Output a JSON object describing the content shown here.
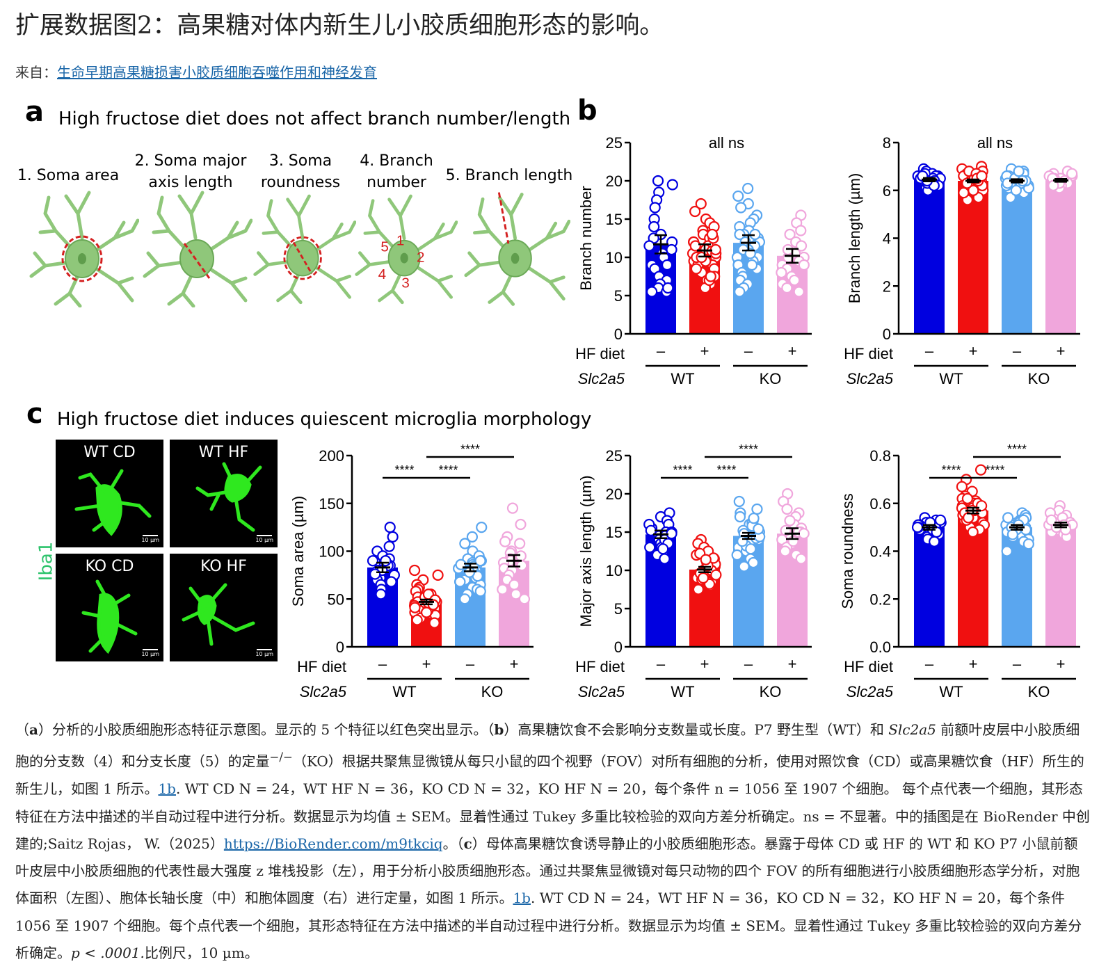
{
  "page_title": "扩展数据图2：高果糖对体内新生儿小胶质细胞形态的影响。",
  "from": {
    "prefix": "来自：",
    "link_text": "生命早期高果糖损害小胶质细胞吞噬作用和神经发育"
  },
  "panel_a": {
    "letter": "a",
    "heading": "High fructose diet does not affect branch number/length",
    "features": [
      {
        "label": "1. Soma area"
      },
      {
        "label": "2. Soma major\naxis length"
      },
      {
        "label": "3. Soma\nroundness"
      },
      {
        "label": "4. Branch\nnumber"
      },
      {
        "label": "5. Branch length"
      }
    ],
    "branch_numbers": [
      "1",
      "2",
      "3",
      "4",
      "5"
    ]
  },
  "panel_b": {
    "letter": "b"
  },
  "panel_c": {
    "letter": "c",
    "heading": "High fructose diet induces quiescent microglia morphology",
    "images": [
      {
        "label": "WT CD"
      },
      {
        "label": "WT HF"
      },
      {
        "label": "KO CD"
      },
      {
        "label": "KO HF"
      }
    ],
    "scale_label": "10 µm",
    "stain_label": "Iba1"
  },
  "chart_data": [
    {
      "type": "bar",
      "panel": "b",
      "annotation": "all ns",
      "ylabel": "Branch number",
      "ylim": [
        0,
        25
      ],
      "yticks": [
        "0",
        "5",
        "10",
        "15",
        "20",
        "25"
      ],
      "row1_label": "HF diet",
      "row1": [
        "–",
        "+",
        "–",
        "+"
      ],
      "row2_label": "Slc2a5",
      "row2": [
        "WT",
        "KO"
      ],
      "colors": [
        "#0000e0",
        "#f01010",
        "#5aa6ef",
        "#f0a6dc"
      ],
      "values": [
        11.7,
        10.9,
        11.9,
        10.2
      ],
      "sem": [
        1.2,
        0.8,
        1.0,
        0.9
      ],
      "points": [
        [
          20,
          19.5,
          18.5,
          17.5,
          16.5,
          15,
          14,
          13,
          12.5,
          12,
          11.5,
          11,
          10.5,
          10,
          9,
          8.5,
          7.5,
          7,
          6.5,
          6,
          5.5,
          5.5,
          6,
          9
        ],
        [
          17,
          16,
          15,
          14.5,
          14,
          13.5,
          13,
          12.5,
          12,
          12,
          11.5,
          11,
          10.8,
          10.5,
          10,
          9.5,
          9,
          9,
          8.5,
          8,
          7.5,
          7,
          6.5,
          6,
          6,
          10.5,
          11.5,
          12.5,
          10,
          8.5,
          7,
          9.5,
          13,
          11,
          10,
          7.5
        ],
        [
          19,
          18,
          17,
          16.5,
          15.5,
          15,
          14.5,
          14,
          13.5,
          13,
          13,
          12.5,
          12,
          12,
          11.5,
          11,
          10.5,
          10,
          10,
          9.5,
          9,
          8.5,
          8,
          7.5,
          7,
          6.5,
          6,
          5.5,
          11,
          13,
          9,
          10.5
        ],
        [
          15.5,
          14.5,
          13.5,
          13,
          12,
          11.5,
          10.5,
          10,
          10,
          9.5,
          9,
          9,
          8.5,
          8,
          7.5,
          7,
          6.5,
          6,
          5.5,
          11
        ]
      ]
    },
    {
      "type": "bar",
      "panel": "b",
      "annotation": "all ns",
      "ylabel": "Branch length (µm)",
      "ylim": [
        0,
        8
      ],
      "yticks": [
        "0",
        "2",
        "4",
        "6",
        "8"
      ],
      "row1_label": "HF diet",
      "row1": [
        "–",
        "+",
        "–",
        "+"
      ],
      "row2_label": "Slc2a5",
      "row2": [
        "WT",
        "KO"
      ],
      "colors": [
        "#0000e0",
        "#f01010",
        "#5aa6ef",
        "#f0a6dc"
      ],
      "values": [
        6.45,
        6.4,
        6.4,
        6.42
      ],
      "sem": [
        0.07,
        0.06,
        0.07,
        0.06
      ],
      "points": [
        [
          6.9,
          6.8,
          6.7,
          6.6,
          6.6,
          6.5,
          6.5,
          6.4,
          6.4,
          6.3,
          6.3,
          6.2,
          6.2,
          6.1,
          6.0,
          6.5,
          6.6,
          6.4,
          6.3,
          6.5,
          6.7,
          6.2,
          6.4,
          6.6
        ],
        [
          7.0,
          6.9,
          6.8,
          6.7,
          6.6,
          6.6,
          6.5,
          6.5,
          6.4,
          6.4,
          6.3,
          6.3,
          6.2,
          6.1,
          6.0,
          5.7,
          5.6,
          6.5,
          6.4,
          6.6,
          6.3,
          6.2,
          6.8,
          6.1,
          6.4,
          6.5,
          6.3,
          6.6,
          6.2,
          6.7,
          6.4,
          6.0,
          6.5,
          5.9,
          6.3,
          6.6
        ],
        [
          6.9,
          6.8,
          6.7,
          6.6,
          6.5,
          6.5,
          6.4,
          6.4,
          6.3,
          6.3,
          6.2,
          6.1,
          6.0,
          5.9,
          5.7,
          6.5,
          6.4,
          6.6,
          6.3,
          6.2,
          6.5,
          6.7,
          6.1,
          6.4,
          6.3,
          6.6,
          6.0,
          6.5,
          6.2,
          6.4,
          6.8,
          6.3
        ],
        [
          6.8,
          6.7,
          6.6,
          6.6,
          6.5,
          6.5,
          6.4,
          6.4,
          6.3,
          6.3,
          6.2,
          6.2,
          6.1,
          6.5,
          6.6,
          6.4,
          6.3,
          6.5,
          6.7,
          6.2
        ]
      ]
    },
    {
      "type": "bar",
      "panel": "c",
      "ylabel": "Soma area (µm)",
      "ylim": [
        0,
        200
      ],
      "yticks": [
        "0",
        "50",
        "100",
        "150",
        "200"
      ],
      "row1_label": "HF diet",
      "row1": [
        "–",
        "+",
        "–",
        "+"
      ],
      "row2_label": "Slc2a5",
      "row2": [
        "WT",
        "KO"
      ],
      "colors": [
        "#0000e0",
        "#f01010",
        "#5aa6ef",
        "#f0a6dc"
      ],
      "values": [
        83,
        47,
        83,
        90
      ],
      "sem": [
        5,
        2.5,
        4,
        6
      ],
      "significance": [
        {
          "from": 0,
          "to": 1,
          "label": "****",
          "level": 0
        },
        {
          "from": 1,
          "to": 2,
          "label": "****",
          "level": 0
        },
        {
          "from": 1,
          "to": 3,
          "label": "****",
          "level": 1
        }
      ],
      "points": [
        [
          125,
          115,
          105,
          100,
          95,
          92,
          90,
          88,
          85,
          85,
          82,
          80,
          78,
          75,
          72,
          70,
          65,
          60,
          55,
          85,
          80,
          90,
          76,
          68
        ],
        [
          80,
          75,
          70,
          65,
          62,
          60,
          58,
          55,
          52,
          50,
          50,
          48,
          47,
          45,
          45,
          44,
          42,
          40,
          40,
          38,
          36,
          35,
          33,
          30,
          28,
          25,
          47,
          52,
          43,
          38,
          46,
          55,
          41,
          49,
          36,
          44
        ],
        [
          125,
          115,
          108,
          100,
          95,
          92,
          90,
          88,
          86,
          85,
          83,
          82,
          80,
          78,
          76,
          75,
          72,
          70,
          68,
          65,
          62,
          60,
          58,
          55,
          50,
          80,
          84,
          90,
          74,
          68,
          86,
          78
        ],
        [
          145,
          128,
          115,
          108,
          100,
          98,
          95,
          92,
          90,
          88,
          85,
          82,
          80,
          75,
          70,
          65,
          60,
          55,
          50,
          110
        ]
      ]
    },
    {
      "type": "bar",
      "panel": "c",
      "ylabel": "Major axis length (µm)",
      "ylim": [
        0,
        25
      ],
      "yticks": [
        "0",
        "5",
        "10",
        "15",
        "20",
        "25"
      ],
      "row1_label": "HF diet",
      "row1": [
        "–",
        "+",
        "–",
        "+"
      ],
      "row2_label": "Slc2a5",
      "row2": [
        "WT",
        "KO"
      ],
      "colors": [
        "#0000e0",
        "#f01010",
        "#5aa6ef",
        "#f0a6dc"
      ],
      "values": [
        14.7,
        10.1,
        14.5,
        14.8
      ],
      "sem": [
        0.5,
        0.35,
        0.4,
        0.7
      ],
      "significance": [
        {
          "from": 0,
          "to": 1,
          "label": "****",
          "level": 0
        },
        {
          "from": 1,
          "to": 2,
          "label": "****",
          "level": 0
        },
        {
          "from": 1,
          "to": 3,
          "label": "****",
          "level": 1
        }
      ],
      "points": [
        [
          17.5,
          17,
          16.5,
          16,
          15.5,
          15,
          15,
          14.5,
          14.5,
          14,
          14,
          13.5,
          13,
          13,
          12.5,
          12,
          11.5,
          15.5,
          14,
          16,
          13.5,
          14.8,
          15.2,
          12.8
        ],
        [
          14,
          13.5,
          13,
          12.5,
          12,
          11.5,
          11,
          11,
          10.5,
          10.5,
          10,
          10,
          9.5,
          9.5,
          9,
          9,
          8.5,
          8.5,
          8,
          7.5,
          10.2,
          9.8,
          11.2,
          10.8,
          9.2,
          8.8,
          12.2,
          10.4,
          9.6,
          11.6,
          10,
          8.2,
          9.4,
          10.6,
          11.4,
          9
        ],
        [
          19,
          18,
          17.5,
          17,
          16.5,
          16,
          15.5,
          15,
          15,
          14.5,
          14.5,
          14,
          14,
          13.5,
          13.5,
          13,
          12.5,
          12,
          11.5,
          11,
          10.5,
          15.2,
          14.2,
          16.2,
          13.2,
          14.8,
          15.8,
          12.8,
          14.4,
          13.8,
          15.4,
          16.8
        ],
        [
          20,
          19,
          18,
          17.5,
          17,
          16,
          15.5,
          15,
          15,
          14.5,
          14,
          13.5,
          13,
          12.5,
          12,
          11.5,
          16.5,
          15.2,
          13.8,
          14.8
        ]
      ]
    },
    {
      "type": "bar",
      "panel": "c",
      "ylabel": "Soma roundness",
      "ylim": [
        0,
        0.8
      ],
      "yticks": [
        "0.0",
        "0.2",
        "0.4",
        "0.6",
        "0.8"
      ],
      "row1_label": "HF diet",
      "row1": [
        "–",
        "+",
        "–",
        "+"
      ],
      "row2_label": "Slc2a5",
      "row2": [
        "WT",
        "KO"
      ],
      "colors": [
        "#0000e0",
        "#f01010",
        "#5aa6ef",
        "#f0a6dc"
      ],
      "values": [
        0.5,
        0.57,
        0.5,
        0.51
      ],
      "sem": [
        0.01,
        0.012,
        0.01,
        0.01
      ],
      "significance": [
        {
          "from": 0,
          "to": 1,
          "label": "****",
          "level": 0
        },
        {
          "from": 1,
          "to": 2,
          "label": "****",
          "level": 0
        },
        {
          "from": 1,
          "to": 3,
          "label": "****",
          "level": 1
        }
      ],
      "points": [
        [
          0.54,
          0.53,
          0.52,
          0.52,
          0.51,
          0.51,
          0.5,
          0.5,
          0.5,
          0.49,
          0.49,
          0.48,
          0.48,
          0.47,
          0.46,
          0.45,
          0.44,
          0.51,
          0.5,
          0.49,
          0.52,
          0.48,
          0.5,
          0.53
        ],
        [
          0.74,
          0.7,
          0.67,
          0.65,
          0.63,
          0.62,
          0.61,
          0.6,
          0.59,
          0.58,
          0.58,
          0.57,
          0.57,
          0.56,
          0.56,
          0.55,
          0.55,
          0.54,
          0.54,
          0.53,
          0.52,
          0.51,
          0.5,
          0.49,
          0.48,
          0.57,
          0.58,
          0.56,
          0.6,
          0.55,
          0.59,
          0.53,
          0.62,
          0.56,
          0.57,
          0.54
        ],
        [
          0.56,
          0.55,
          0.54,
          0.53,
          0.53,
          0.52,
          0.52,
          0.51,
          0.51,
          0.5,
          0.5,
          0.49,
          0.49,
          0.48,
          0.48,
          0.47,
          0.46,
          0.45,
          0.44,
          0.43,
          0.4,
          0.5,
          0.51,
          0.49,
          0.52,
          0.48,
          0.5,
          0.53,
          0.47,
          0.51,
          0.49,
          0.54
        ],
        [
          0.59,
          0.57,
          0.56,
          0.55,
          0.54,
          0.53,
          0.52,
          0.52,
          0.51,
          0.51,
          0.5,
          0.5,
          0.49,
          0.48,
          0.47,
          0.46,
          0.51,
          0.5,
          0.53,
          0.49
        ]
      ]
    }
  ],
  "caption": {
    "p1_a_label": "a",
    "p1_a_text": "分析的小胶质细胞形态特征示意图。显示的 5 个特征以红色突出显示。（",
    "p1_b_label": "b",
    "p1_b_text": "）高果糖饮食不会影响分支数量或长度。P7 野生型（WT）和 ",
    "p1_gene": "Slc2a5",
    "p1_text2": " 前额叶皮层中小胶质细胞的分支数（4）和分支长度（5）的定量",
    "p1_sup": "−/−",
    "p1_text3": "（KO）根据共聚焦显微镜从每只小鼠的四个视野（FOV）对所有细胞的分析，使用对照饮食（CD）或高果糖饮食（HF）所生的新生儿，如图 1 所示。",
    "link_1b": "1b",
    "p1_text4": ". WT CD N = 24，WT HF N = 36，KO CD N = 32，KO HF N = 20，每个条件 n = 1056 至 1907 个细胞。 每个点代表一个细胞，其形态特征在方法中描述的半自动过程中进行分析。数据显示为均值 ± SEM。显着性通过 Tukey 多重比较检验的双向方差分析确定。ns = 不显著。中的插图是在 BioRender 中创建的;Saitz Rojas， W.（2025）",
    "link_biorender": "https://BioRender.com/m9tkciq",
    "p1_text5": "。（",
    "p1_c_label": "c",
    "p1_c_text": "）母体高果糖饮食诱导静止的小胶质细胞形态。暴露于母体 CD 或 HF 的 WT 和 KO P7 小鼠前额叶皮层中小胶质细胞的代表性最大强度 z 堆栈投影（左），用于分析小胶质细胞形态。通过共聚焦显微镜对每只动物的四个 FOV 的所有细胞进行小胶质细胞形态学分析，对胞体面积（左图）、胞体长轴长度（中）和胞体圆度（右）进行定量，如图 1 所示。",
    "link_1b_2": "1b",
    "p1_text6": ". WT CD N = 24，WT HF N = 36，KO CD N = 32，KO HF N = 20，每个条件 1056 至 1907 个细胞。每个点代表一个细胞，其形态特征在方法中描述的半自动过程中进行分析。数据显示为均值 ± SEM。显着性通过 Tukey 多重比较检验的双向方差分析确定。",
    "p_value": "p < .0001.",
    "p1_text7": "比例尺，10 µm。"
  }
}
